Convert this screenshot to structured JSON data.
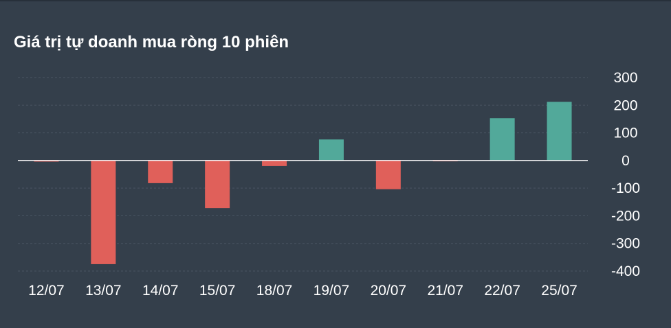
{
  "colors": {
    "background": "#343f4b",
    "positive": "#52a99a",
    "negative": "#e0605a",
    "zero_line": "#ffffff",
    "grid": "#4a5563",
    "text": "#ffffff"
  },
  "chart_data": {
    "type": "bar",
    "title": "Giá trị tự doanh mua ròng 10 phiên",
    "xlabel": "",
    "ylabel": "",
    "categories": [
      "12/07",
      "13/07",
      "14/07",
      "15/07",
      "18/07",
      "19/07",
      "20/07",
      "21/07",
      "22/07",
      "25/07"
    ],
    "values": [
      -4,
      -375,
      -82,
      -172,
      -20,
      76,
      -104,
      -3,
      153,
      212
    ],
    "ylim": [
      -400,
      300
    ],
    "yticks": [
      "300",
      "200",
      "100",
      "0",
      "-100",
      "-200",
      "-300",
      "-400"
    ],
    "y_axis_position": "right",
    "grid": true,
    "legend": "none"
  }
}
